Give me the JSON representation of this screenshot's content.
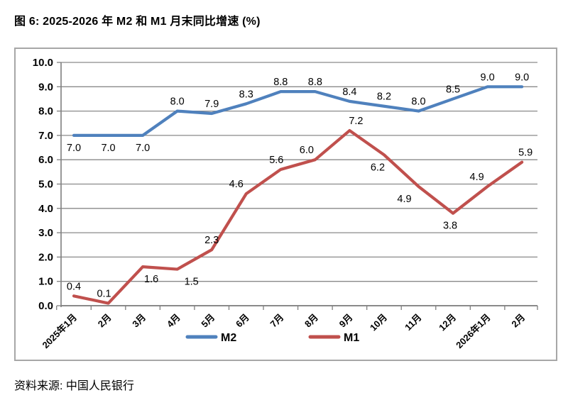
{
  "title": "图 6: 2025-2026 年 M2 和 M1 月末同比增速 (%)",
  "source": "资料来源: 中国人民银行",
  "chart_data": {
    "type": "line",
    "categories": [
      "2025年1月",
      "2月",
      "3月",
      "4月",
      "5月",
      "6月",
      "7月",
      "8月",
      "9月",
      "10月",
      "11月",
      "12月",
      "2026年1月",
      "2月"
    ],
    "series": [
      {
        "name": "M2",
        "color": "#4F81BD",
        "values": [
          7.0,
          7.0,
          7.0,
          8.0,
          7.9,
          8.3,
          8.8,
          8.8,
          8.4,
          8.2,
          8.0,
          8.5,
          9.0,
          9.0
        ]
      },
      {
        "name": "M1",
        "color": "#C0504D",
        "values": [
          0.4,
          0.1,
          1.6,
          1.5,
          2.3,
          4.6,
          5.6,
          6.0,
          7.2,
          6.2,
          4.9,
          3.8,
          4.9,
          5.9
        ]
      }
    ],
    "ylim": [
      0,
      10
    ],
    "y_tick_step": 1,
    "y_ticks": [
      "0.0",
      "1.0",
      "2.0",
      "3.0",
      "4.0",
      "5.0",
      "6.0",
      "7.0",
      "8.0",
      "9.0",
      "10.0"
    ],
    "grid": true,
    "data_labels": true,
    "legend_position": "bottom"
  },
  "colors": {
    "grid": "#8a8a8a",
    "axis": "#7f7f7f",
    "box_border": "#a7a7a7",
    "label_text": "#000000"
  }
}
